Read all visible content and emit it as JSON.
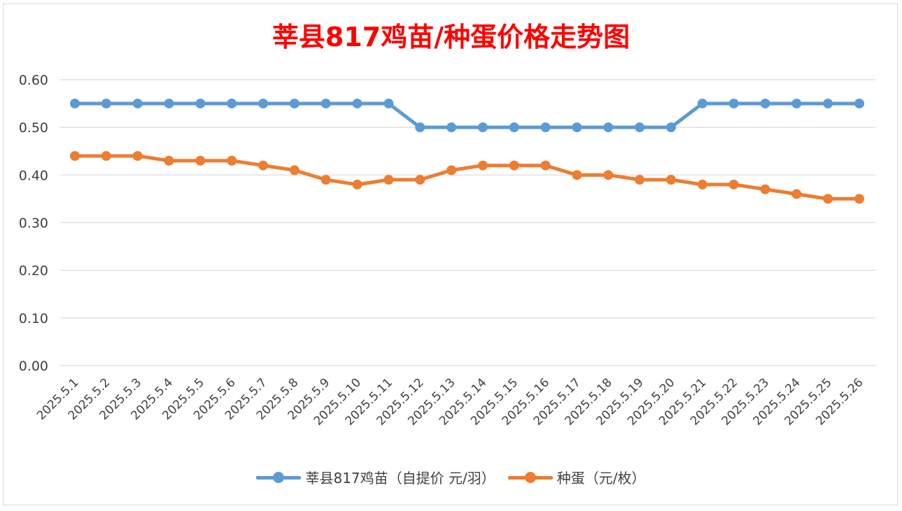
{
  "chart_data": {
    "type": "line",
    "title": "莘县817鸡苗/种蛋价格走势图",
    "categories": [
      "2025.5.1",
      "2025.5.2",
      "2025.5.3",
      "2025.5.4",
      "2025.5.5",
      "2025.5.6",
      "2025.5.7",
      "2025.5.8",
      "2025.5.9",
      "2025.5.10",
      "2025.5.11",
      "2025.5.12",
      "2025.5.13",
      "2025.5.14",
      "2025.5.15",
      "2025.5.16",
      "2025.5.17",
      "2025.5.18",
      "2025.5.19",
      "2025.5.20",
      "2025.5.21",
      "2025.5.22",
      "2025.5.23",
      "2025.5.24",
      "2025.5.25",
      "2025.5.26"
    ],
    "series": [
      {
        "name": "莘县817鸡苗（自提价 元/羽）",
        "color": "#5b9bd5",
        "values": [
          0.55,
          0.55,
          0.55,
          0.55,
          0.55,
          0.55,
          0.55,
          0.55,
          0.55,
          0.55,
          0.55,
          0.5,
          0.5,
          0.5,
          0.5,
          0.5,
          0.5,
          0.5,
          0.5,
          0.5,
          0.55,
          0.55,
          0.55,
          0.55,
          0.55,
          0.55
        ]
      },
      {
        "name": "种蛋（元/枚）",
        "color": "#ed7d31",
        "values": [
          0.44,
          0.44,
          0.44,
          0.43,
          0.43,
          0.43,
          0.42,
          0.41,
          0.39,
          0.38,
          0.39,
          0.39,
          0.41,
          0.42,
          0.42,
          0.42,
          0.4,
          0.4,
          0.39,
          0.39,
          0.38,
          0.38,
          0.37,
          0.36,
          0.35,
          0.35
        ]
      }
    ],
    "y_ticks": [
      "0.00",
      "0.10",
      "0.20",
      "0.30",
      "0.40",
      "0.50",
      "0.60"
    ],
    "ylim": [
      0,
      0.6
    ],
    "grid": true,
    "legend_position": "bottom",
    "title_color": "#ff0000",
    "gridline_color": "#d9d9d9"
  }
}
